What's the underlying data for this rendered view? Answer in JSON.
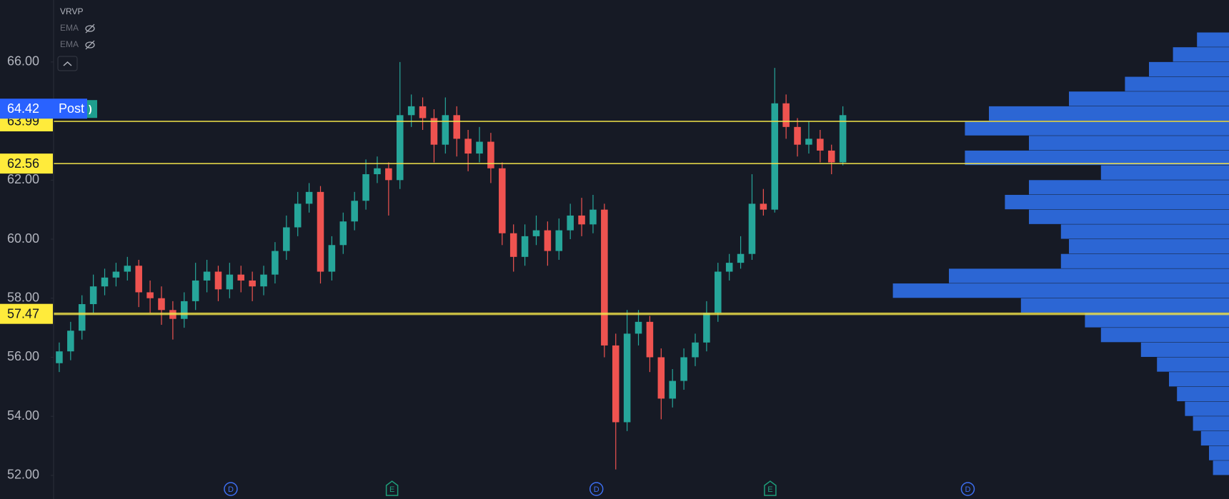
{
  "chart_data": {
    "type": "candlestick",
    "indicators": [
      "VRVP",
      "EMA",
      "EMA"
    ],
    "ylim": [
      51.2,
      68.1
    ],
    "yticks": [
      {
        "value": 52,
        "label": "52.00"
      },
      {
        "value": 54,
        "label": "54.00"
      },
      {
        "value": 56,
        "label": "56.00"
      },
      {
        "value": 58,
        "label": "58.00"
      },
      {
        "value": 60,
        "label": "60.00"
      },
      {
        "value": 62,
        "label": "62.00"
      },
      {
        "value": 66,
        "label": "66.00"
      }
    ],
    "xlim": [
      -0.5,
      103
    ],
    "up_color": "#26a69a",
    "down_color": "#ef5350",
    "open": [
      55.8,
      56.2,
      56.9,
      57.8,
      58.4,
      58.7,
      58.9,
      59.1,
      58.2,
      58.0,
      57.6,
      57.3,
      57.9,
      58.6,
      58.9,
      58.3,
      58.8,
      58.6,
      58.4,
      58.8,
      59.6,
      60.4,
      61.2,
      61.6,
      58.9,
      59.8,
      60.6,
      61.3,
      62.2,
      62.4,
      62.0,
      64.2,
      64.5,
      64.1,
      63.2,
      64.2,
      63.4,
      62.9,
      63.3,
      62.4,
      60.2,
      59.4,
      60.1,
      60.3,
      59.6,
      60.3,
      60.8,
      60.5,
      61.0,
      56.4,
      53.8,
      56.8,
      57.2,
      56.0,
      54.6,
      55.2,
      56.0,
      56.5,
      57.5,
      58.9,
      59.2,
      59.5,
      61.2,
      61.0,
      64.6,
      63.8,
      63.2,
      63.4,
      63.0,
      62.6
    ],
    "high": [
      56.5,
      57.2,
      58.1,
      58.8,
      59.0,
      59.2,
      59.4,
      59.3,
      58.6,
      58.4,
      57.9,
      58.2,
      59.2,
      59.3,
      59.1,
      59.2,
      59.1,
      58.9,
      59.1,
      59.9,
      60.8,
      61.6,
      61.9,
      61.8,
      60.1,
      60.9,
      61.6,
      62.7,
      62.8,
      62.6,
      66.0,
      64.9,
      64.8,
      64.4,
      64.8,
      64.5,
      63.7,
      63.8,
      63.6,
      62.6,
      60.5,
      60.5,
      60.8,
      60.6,
      60.7,
      61.2,
      61.4,
      61.5,
      61.2,
      56.8,
      57.6,
      57.6,
      57.4,
      56.3,
      55.6,
      56.3,
      56.8,
      57.9,
      59.2,
      59.5,
      60.1,
      62.2,
      61.7,
      65.8,
      64.9,
      64.1,
      64.0,
      63.7,
      63.2,
      64.5
    ],
    "low": [
      55.5,
      55.9,
      56.6,
      57.5,
      58.1,
      58.4,
      58.6,
      57.7,
      57.5,
      57.1,
      56.6,
      57.0,
      57.6,
      58.2,
      57.9,
      58.0,
      58.2,
      57.9,
      58.1,
      58.5,
      59.3,
      60.1,
      60.9,
      58.5,
      58.6,
      59.5,
      60.3,
      61.0,
      61.9,
      60.8,
      61.7,
      63.8,
      63.7,
      62.6,
      62.9,
      62.8,
      62.3,
      62.6,
      61.9,
      59.8,
      58.9,
      59.1,
      59.8,
      59.1,
      59.3,
      60.0,
      60.1,
      60.2,
      56.0,
      52.2,
      53.5,
      56.4,
      55.5,
      53.9,
      54.3,
      54.9,
      55.7,
      56.2,
      57.2,
      58.6,
      59.0,
      59.3,
      60.8,
      60.9,
      63.4,
      62.8,
      62.9,
      62.6,
      62.2,
      62.5
    ],
    "close": [
      56.2,
      56.9,
      57.8,
      58.4,
      58.7,
      58.9,
      59.1,
      58.2,
      58.0,
      57.6,
      57.3,
      57.9,
      58.6,
      58.9,
      58.3,
      58.8,
      58.6,
      58.4,
      58.8,
      59.6,
      60.4,
      61.2,
      61.6,
      58.9,
      59.8,
      60.6,
      61.3,
      62.2,
      62.4,
      62.0,
      64.2,
      64.5,
      64.1,
      63.2,
      64.2,
      63.4,
      62.9,
      63.3,
      62.4,
      60.2,
      59.4,
      60.1,
      60.3,
      59.6,
      60.3,
      60.8,
      60.5,
      61.0,
      56.4,
      53.8,
      56.8,
      57.2,
      56.0,
      54.6,
      55.2,
      56.0,
      56.5,
      57.5,
      58.9,
      59.2,
      59.5,
      61.2,
      61.0,
      64.6,
      63.8,
      63.2,
      63.4,
      63.0,
      62.6,
      64.2
    ],
    "levels": [
      63.99,
      62.56,
      57.47
    ],
    "level_color": "#f2e44a",
    "last_price": 64.42,
    "session_label": "Post",
    "volume_profile": {
      "color": "#2f6fe8",
      "xlim": [
        0,
        500
      ],
      "bins": [
        52,
        52.5,
        53,
        53.5,
        54,
        54.5,
        55,
        55.5,
        56,
        56.5,
        57,
        57.5,
        58,
        58.5,
        59,
        59.5,
        60,
        60.5,
        61,
        61.5,
        62,
        62.5,
        63,
        63.5,
        64,
        64.5,
        65,
        65.5,
        66,
        66.5,
        67
      ],
      "values": [
        20,
        25,
        35,
        45,
        55,
        65,
        75,
        90,
        110,
        160,
        180,
        260,
        420,
        350,
        210,
        200,
        210,
        250,
        280,
        250,
        160,
        330,
        250,
        330,
        300,
        200,
        130,
        100,
        70,
        40
      ]
    },
    "events": [
      {
        "label": "D",
        "x": 15.1
      },
      {
        "label": "E",
        "x": 29.3
      },
      {
        "label": "D",
        "x": 47.3
      },
      {
        "label": "E",
        "x": 62.6
      },
      {
        "label": "D",
        "x": 80.0
      }
    ]
  }
}
